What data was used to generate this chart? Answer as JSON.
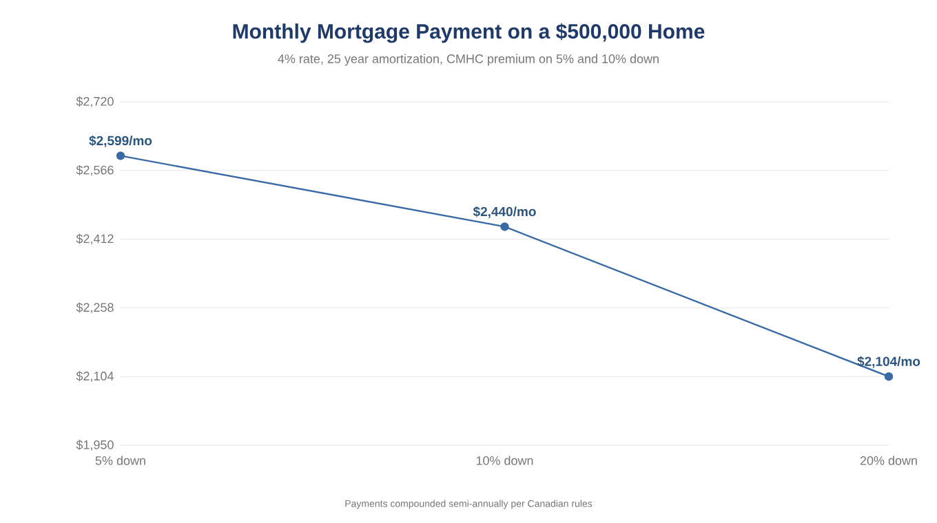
{
  "chart_data": {
    "type": "line",
    "title": "Monthly Mortgage Payment on a $500,000 Home",
    "subtitle": "4% rate, 25 year amortization, CMHC premium on 5% and 10% down",
    "categories": [
      "5% down",
      "10% down",
      "20% down"
    ],
    "values": [
      2599,
      2440,
      2104
    ],
    "color": "#3a6aa5",
    "value_labels": [
      "$2,599/mo",
      "$2,440/mo",
      "$2,104/mo"
    ],
    "ylim": [
      1950,
      2720
    ],
    "yticks": [
      {
        "value": 1950,
        "label": "$1,950"
      },
      {
        "value": 2104,
        "label": "$2,104"
      },
      {
        "value": 2258,
        "label": "$2,258"
      },
      {
        "value": 2412,
        "label": "$2,412"
      },
      {
        "value": 2566,
        "label": "$2,566"
      },
      {
        "value": 2720,
        "label": "$2,720"
      }
    ],
    "grid": "y",
    "marker": "circle",
    "line_style": "solid",
    "annotations": [
      "Payments compounded semi-annually per Canadian rules"
    ]
  }
}
